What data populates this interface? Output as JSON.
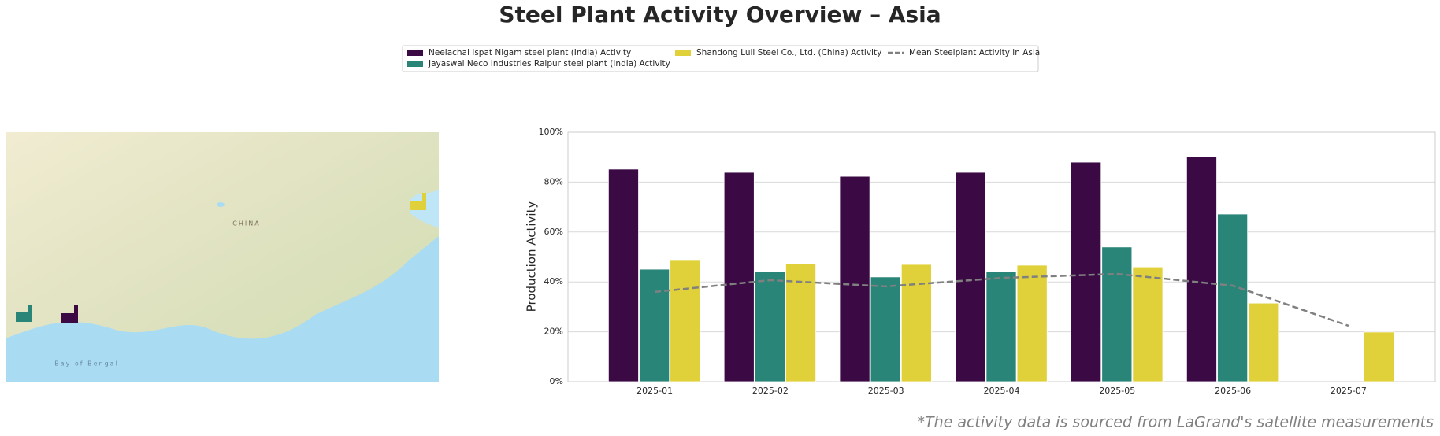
{
  "chart_data": {
    "type": "bar",
    "title": "Steel Plant Activity Overview – Asia",
    "ylabel": "Production Activity",
    "annotation": "*The activity data is sourced from LaGrand's satellite measurements",
    "categories": [
      "2025-01",
      "2025-02",
      "2025-03",
      "2025-04",
      "2025-05",
      "2025-06",
      "2025-07"
    ],
    "series": [
      {
        "name": "Neelachal Ispat Nigam steel plant (India) Activity",
        "color": "#3b0a45",
        "values": [
          85.2,
          83.9,
          82.3,
          83.9,
          88.0,
          90.2,
          null
        ]
      },
      {
        "name": "Jayaswal Neco Industries Raipur steel plant (India) Activity",
        "color": "#2a8579",
        "values": [
          45.1,
          44.2,
          42.0,
          44.2,
          54.0,
          67.2,
          null
        ]
      },
      {
        "name": "Shandong Luli Steel Co., Ltd. (China) Activity",
        "color": "#e0d03a",
        "values": [
          48.6,
          47.3,
          47.0,
          46.7,
          46.0,
          31.5,
          19.9
        ]
      },
      {
        "name": "Mean Steelplant Activity in Asia",
        "color": "#808080",
        "type": "line",
        "dashed": true,
        "values": [
          36.0,
          40.7,
          38.2,
          41.6,
          43.2,
          38.5,
          22.4
        ]
      }
    ],
    "ylim": [
      0,
      100
    ],
    "yticks": [
      {
        "value": 0,
        "label": "0%"
      },
      {
        "value": 20,
        "label": "20%"
      },
      {
        "value": 40,
        "label": "40%"
      },
      {
        "value": 60,
        "label": "60%"
      },
      {
        "value": 80,
        "label": "80%"
      },
      {
        "value": 100,
        "label": "100%"
      }
    ],
    "grid": true,
    "legend": "top"
  },
  "map": {
    "labels": [
      "CHINA",
      "Bay of Bengal"
    ]
  }
}
